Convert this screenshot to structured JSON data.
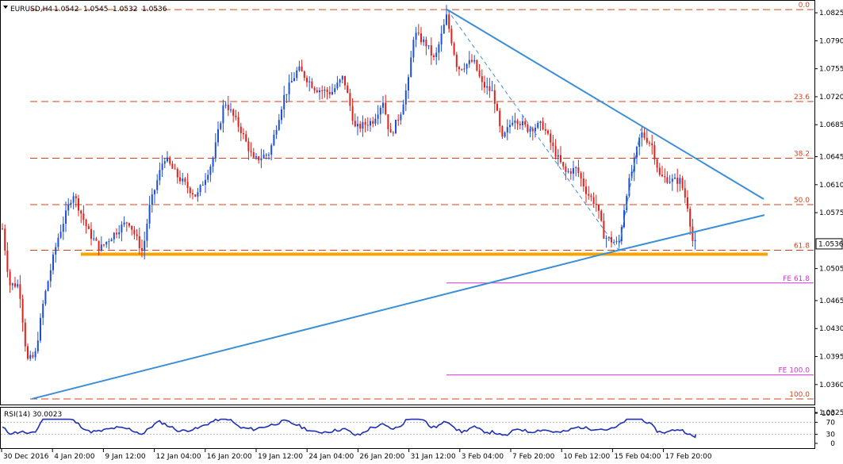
{
  "chart_data": {
    "type": "candlestick",
    "symbol": "EURUSD,H4",
    "ohlc": {
      "open": "1.0542",
      "high": "1.0545",
      "low": "1.0532",
      "close": "1.0536"
    },
    "current_price": "1.0536",
    "ylim": [
      1.0335,
      1.084
    ],
    "y_ticks": [
      "1.0825",
      "1.0790",
      "1.0755",
      "1.0720",
      "1.0685",
      "1.0645",
      "1.0610",
      "1.0575",
      "1.0505",
      "1.0465",
      "1.0430",
      "1.0395",
      "1.0360",
      "1.0325"
    ],
    "x_labels": [
      "30 Dec 2016",
      "4 Jan 20:00",
      "9 Jan 12:00",
      "12 Jan 04:00",
      "16 Jan 20:00",
      "19 Jan 12:00",
      "24 Jan 04:00",
      "26 Jan 20:00",
      "31 Jan 12:00",
      "3 Feb 04:00",
      "7 Feb 20:00",
      "10 Feb 12:00",
      "15 Feb 04:00",
      "17 Feb 20:00"
    ],
    "fib_levels": [
      {
        "label": "0.0",
        "price": 1.0829
      },
      {
        "label": "23.6",
        "price": 1.0714
      },
      {
        "label": "38.2",
        "price": 1.0643
      },
      {
        "label": "50.0",
        "price": 1.0585
      },
      {
        "label": "61.8",
        "price": 1.0528
      },
      {
        "label": "100.0",
        "price": 1.0342
      }
    ],
    "fe_levels": [
      {
        "label": "FE 61.8",
        "price": 1.0487
      },
      {
        "label": "FE 100.0",
        "price": 1.0372
      }
    ],
    "support_level": 1.0523,
    "colors": {
      "bull": "#1f4fd6",
      "bear": "#e0201a",
      "fib": "#d2431e",
      "trend": "#3b8fd8",
      "support": "#f7a400",
      "fe": "#cc33cc",
      "rsi": "#1f2fb5"
    },
    "rsi": {
      "label": "RSI(14) 30.0023",
      "ylim": [
        0,
        100
      ],
      "ticks": [
        "100",
        "70",
        "30",
        "0"
      ],
      "levels": [
        70,
        30
      ]
    }
  }
}
